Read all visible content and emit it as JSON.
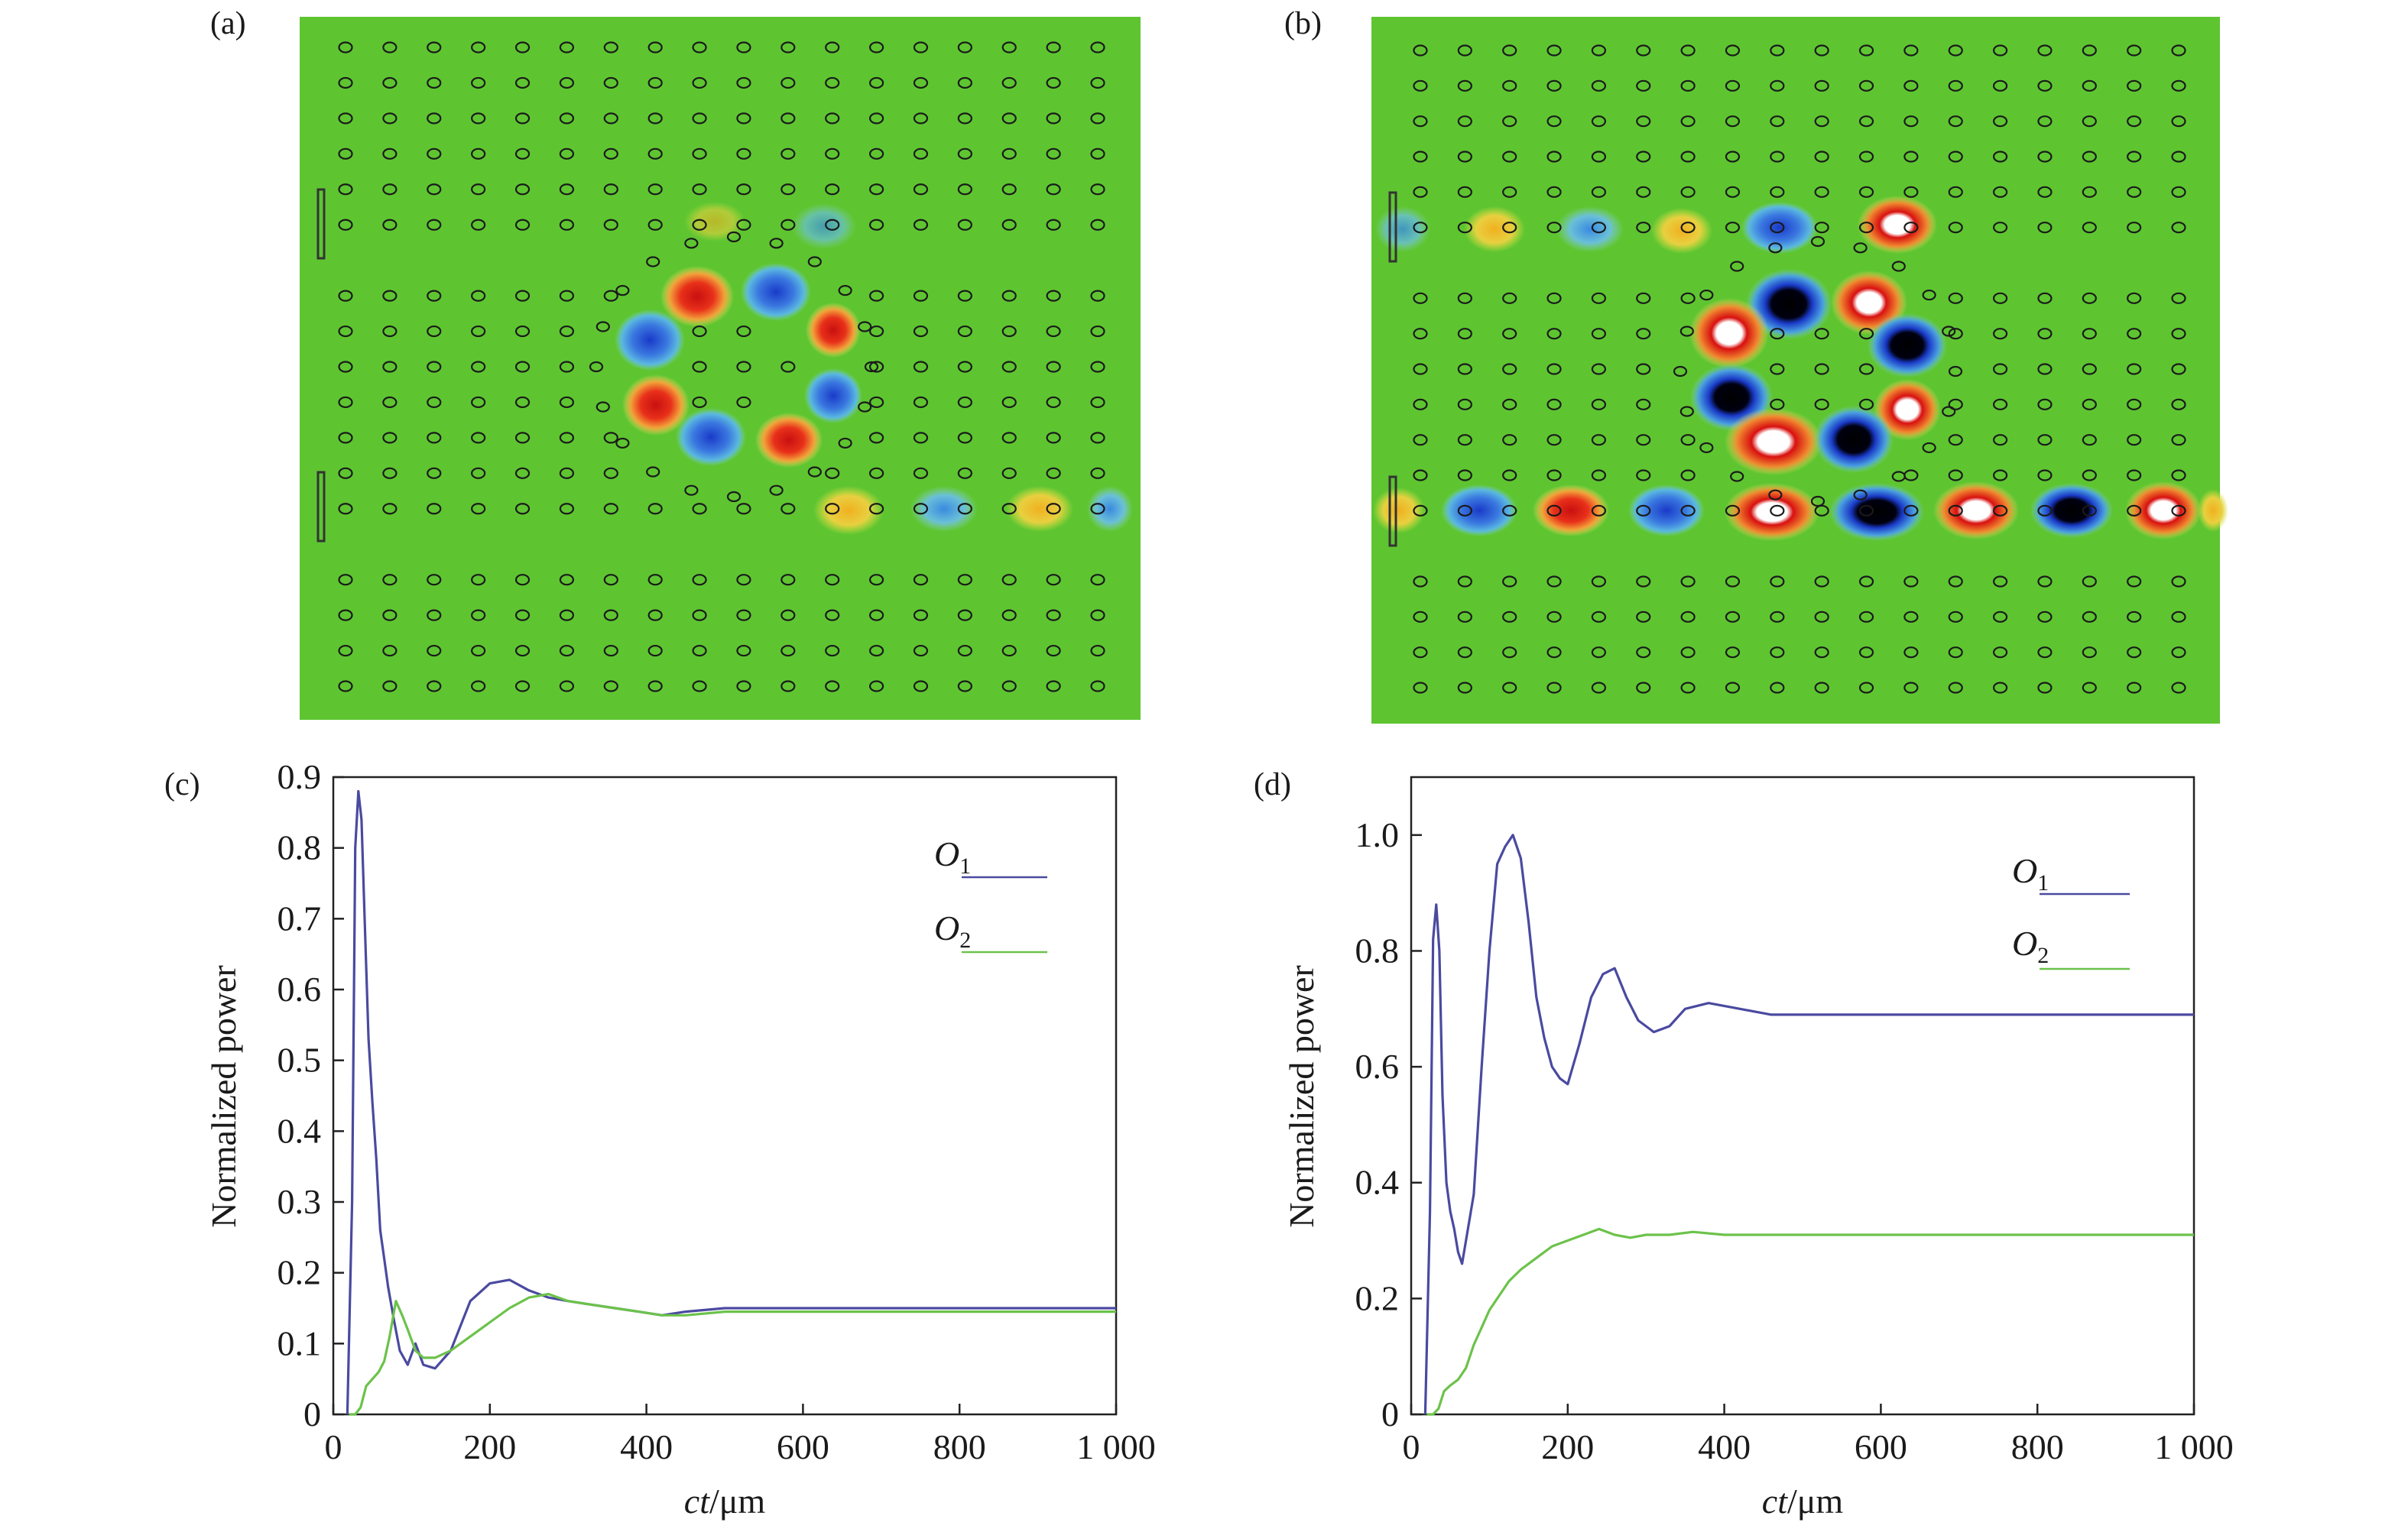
{
  "colors": {
    "field_bg": "#5ec531",
    "axis": "#222222",
    "o1_line": "#4a4aa0",
    "o2_line": "#6cc24a"
  },
  "panels": {
    "a": {
      "label": "(a)"
    },
    "b": {
      "label": "(b)"
    },
    "c": {
      "label": "(c)"
    },
    "d": {
      "label": "(d)"
    }
  },
  "field_maps": [
    {
      "panel": "a",
      "rod_columns": 18,
      "rod_rows": 19,
      "rod_color": "#1a1a1a"
    },
    {
      "panel": "b",
      "rod_columns": 18,
      "rod_rows": 19,
      "rod_color": "#1a1a1a"
    }
  ],
  "chart_data": [
    {
      "panel": "c",
      "type": "line",
      "xlabel_italic": "ct",
      "xlabel_unit": "/μm",
      "ylabel": "Normalized power",
      "xlim": [
        0,
        1000
      ],
      "ylim": [
        0,
        0.9
      ],
      "xticks": [
        0,
        200,
        400,
        600,
        800,
        1000
      ],
      "xtick_labels": [
        "0",
        "200",
        "400",
        "600",
        "800",
        "1 000"
      ],
      "yticks": [
        0,
        0.1,
        0.2,
        0.3,
        0.4,
        0.5,
        0.6,
        0.7,
        0.8,
        0.9
      ],
      "ytick_labels": [
        "0",
        "0.1",
        "0.2",
        "0.3",
        "0.4",
        "0.5",
        "0.6",
        "0.7",
        "0.8",
        "0.9"
      ],
      "grid": false,
      "legend_position": "top-right",
      "series": [
        {
          "name": "O",
          "sub": "1",
          "color": "#4a4aa0",
          "x": [
            18,
            24,
            28,
            32,
            36,
            40,
            45,
            50,
            55,
            60,
            65,
            70,
            78,
            85,
            95,
            105,
            115,
            130,
            150,
            175,
            200,
            225,
            250,
            275,
            300,
            330,
            360,
            390,
            420,
            450,
            500,
            600,
            700,
            800,
            900,
            1000
          ],
          "y": [
            0.0,
            0.3,
            0.8,
            0.88,
            0.84,
            0.7,
            0.53,
            0.44,
            0.36,
            0.26,
            0.22,
            0.18,
            0.13,
            0.09,
            0.07,
            0.1,
            0.07,
            0.065,
            0.09,
            0.16,
            0.185,
            0.19,
            0.175,
            0.165,
            0.16,
            0.155,
            0.15,
            0.145,
            0.14,
            0.145,
            0.15,
            0.15,
            0.15,
            0.15,
            0.15,
            0.15
          ]
        },
        {
          "name": "O",
          "sub": "2",
          "color": "#6cc24a",
          "x": [
            20,
            28,
            35,
            42,
            50,
            58,
            65,
            72,
            80,
            88,
            95,
            105,
            115,
            130,
            150,
            175,
            200,
            225,
            250,
            275,
            300,
            330,
            360,
            390,
            420,
            450,
            500,
            600,
            700,
            800,
            900,
            1000
          ],
          "y": [
            0.0,
            0.0,
            0.01,
            0.04,
            0.05,
            0.06,
            0.075,
            0.11,
            0.16,
            0.14,
            0.12,
            0.09,
            0.08,
            0.08,
            0.09,
            0.11,
            0.13,
            0.15,
            0.165,
            0.17,
            0.16,
            0.155,
            0.15,
            0.145,
            0.14,
            0.14,
            0.145,
            0.145,
            0.145,
            0.145,
            0.145,
            0.145
          ]
        }
      ]
    },
    {
      "panel": "d",
      "type": "line",
      "xlabel_italic": "ct",
      "xlabel_unit": "/μm",
      "ylabel": "Normalized power",
      "xlim": [
        0,
        1000
      ],
      "ylim": [
        0,
        1.1
      ],
      "xticks": [
        0,
        200,
        400,
        600,
        800,
        1000
      ],
      "xtick_labels": [
        "0",
        "200",
        "400",
        "600",
        "800",
        "1 000"
      ],
      "yticks": [
        0,
        0.2,
        0.4,
        0.6,
        0.8,
        1.0
      ],
      "ytick_labels": [
        "0",
        "0.2",
        "0.4",
        "0.6",
        "0.8",
        "1.0"
      ],
      "grid": false,
      "legend_position": "top-right",
      "series": [
        {
          "name": "O",
          "sub": "1",
          "color": "#4a4aa0",
          "x": [
            18,
            24,
            28,
            32,
            36,
            40,
            45,
            50,
            55,
            60,
            65,
            70,
            80,
            90,
            100,
            110,
            120,
            130,
            140,
            150,
            160,
            170,
            180,
            190,
            200,
            215,
            230,
            245,
            260,
            275,
            290,
            310,
            330,
            350,
            380,
            420,
            460,
            500,
            600,
            700,
            800,
            900,
            1000
          ],
          "y": [
            0.0,
            0.35,
            0.82,
            0.88,
            0.8,
            0.55,
            0.4,
            0.35,
            0.32,
            0.28,
            0.26,
            0.3,
            0.38,
            0.6,
            0.8,
            0.95,
            0.98,
            1.0,
            0.96,
            0.85,
            0.72,
            0.65,
            0.6,
            0.58,
            0.57,
            0.64,
            0.72,
            0.76,
            0.77,
            0.72,
            0.68,
            0.66,
            0.67,
            0.7,
            0.71,
            0.7,
            0.69,
            0.69,
            0.69,
            0.69,
            0.69,
            0.69,
            0.69
          ]
        },
        {
          "name": "O",
          "sub": "2",
          "color": "#6cc24a",
          "x": [
            20,
            28,
            35,
            42,
            50,
            60,
            70,
            80,
            90,
            100,
            110,
            125,
            140,
            160,
            180,
            200,
            220,
            240,
            260,
            280,
            300,
            330,
            360,
            400,
            450,
            500,
            600,
            700,
            800,
            900,
            1000
          ],
          "y": [
            0.0,
            0.0,
            0.01,
            0.04,
            0.05,
            0.06,
            0.08,
            0.12,
            0.15,
            0.18,
            0.2,
            0.23,
            0.25,
            0.27,
            0.29,
            0.3,
            0.31,
            0.32,
            0.31,
            0.305,
            0.31,
            0.31,
            0.315,
            0.31,
            0.31,
            0.31,
            0.31,
            0.31,
            0.31,
            0.31,
            0.31
          ]
        }
      ]
    }
  ]
}
